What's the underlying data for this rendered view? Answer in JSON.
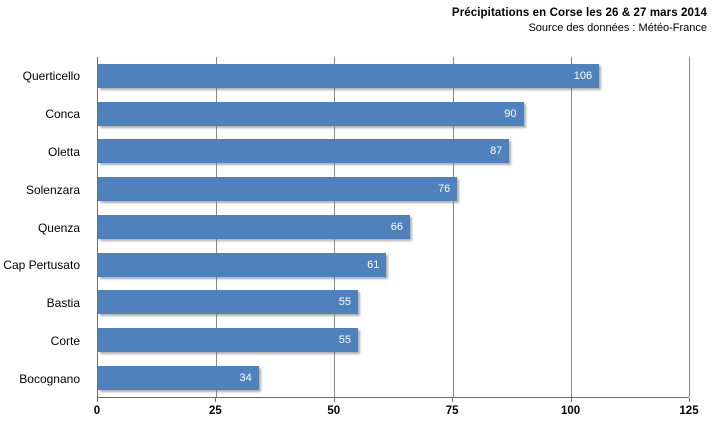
{
  "header": {
    "title": "Précipitations  en Corse les 26 &  27 mars 2014",
    "subtitle": "Source des données : Météo-France"
  },
  "chart_data": {
    "type": "bar",
    "orientation": "horizontal",
    "title": "Précipitations en Corse les 26 & 27 mars 2014",
    "subtitle": "Source des données : Météo-France",
    "categories": [
      "Querticello",
      "Conca",
      "Oletta",
      "Solenzara",
      "Quenza",
      "Cap Pertusato",
      "Bastia",
      "Corte",
      "Bocognano"
    ],
    "values": [
      106,
      90,
      87,
      76,
      66,
      61,
      55,
      55,
      34
    ],
    "data_labels_position": "inside-end",
    "xlabel": "",
    "ylabel": "",
    "xlim": [
      0,
      125
    ],
    "x_ticks": [
      0,
      25,
      50,
      75,
      100,
      125
    ],
    "grid": "vertical",
    "legend": "none",
    "bar_color": "#4f81bd",
    "data_label_color": "#ffffff",
    "gridline_color": "#898989"
  }
}
